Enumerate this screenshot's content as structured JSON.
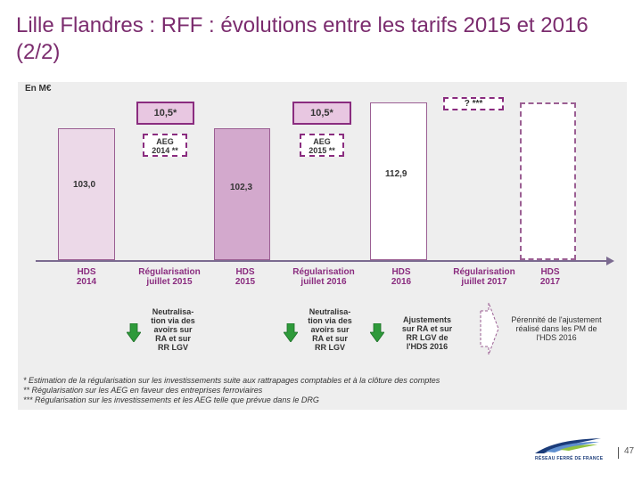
{
  "title": "Lille Flandres : RFF : évolutions entre les tarifs 2015 et 2016 (2/2)",
  "chart": {
    "unit": "En M€",
    "bars": {
      "hds2014": "103,0",
      "hds2015": "102,3",
      "hds2016": "112,9"
    },
    "regularisation_2015": "10,5*",
    "regularisation_2016": "10,5*",
    "regularisation_2017": "? ***",
    "aeg_2014": {
      "line1": "AEG",
      "line2": "2014 **"
    },
    "aeg_2015": {
      "line1": "AEG",
      "line2": "2015 **"
    },
    "axis_labels": {
      "hds2014": {
        "line1": "HDS",
        "line2": "2014"
      },
      "reg2015": {
        "line1": "Régularisation",
        "line2": "juillet 2015"
      },
      "hds2015": {
        "line1": "HDS",
        "line2": "2015"
      },
      "reg2016": {
        "line1": "Régularisation",
        "line2": "juillet 2016"
      },
      "hds2016": {
        "line1": "HDS",
        "line2": "2016"
      },
      "reg2017": {
        "line1": "Régularisation",
        "line2": "juillet 2017"
      },
      "hds2017": {
        "line1": "HDS",
        "line2": "2017"
      }
    },
    "notes": {
      "neutralisation_2015": [
        "Neutralisa-",
        "tion via des",
        "avoirs sur",
        "RA et sur",
        "RR LGV"
      ],
      "neutralisation_2016": [
        "Neutralisa-",
        "tion via des",
        "avoirs sur",
        "RA et sur",
        "RR LGV"
      ],
      "ajustements": [
        "Ajustements",
        "sur RA et sur",
        "RR LGV de",
        "l'HDS 2016"
      ],
      "perennite": [
        "Pérennité de l'ajustement",
        "réalisé dans les PM de",
        "l'HDS 2016"
      ]
    },
    "footnotes": [
      "* Estimation de la régularisation sur les investissements suite aux rattrapages comptables et à la clôture des comptes",
      "** Régularisation sur les AEG en faveur des entreprises ferroviaires",
      "*** Régularisation sur les investissements et les AEG telle que prévue dans le DRG"
    ],
    "colors": {
      "accent": "#8a2c7f",
      "green_arrow": "#2e9a3a",
      "axis": "#7b6a90"
    }
  },
  "footer": {
    "logo_text": "RÉSEAU FERRÉ DE FRANCE",
    "page_number": "47"
  }
}
